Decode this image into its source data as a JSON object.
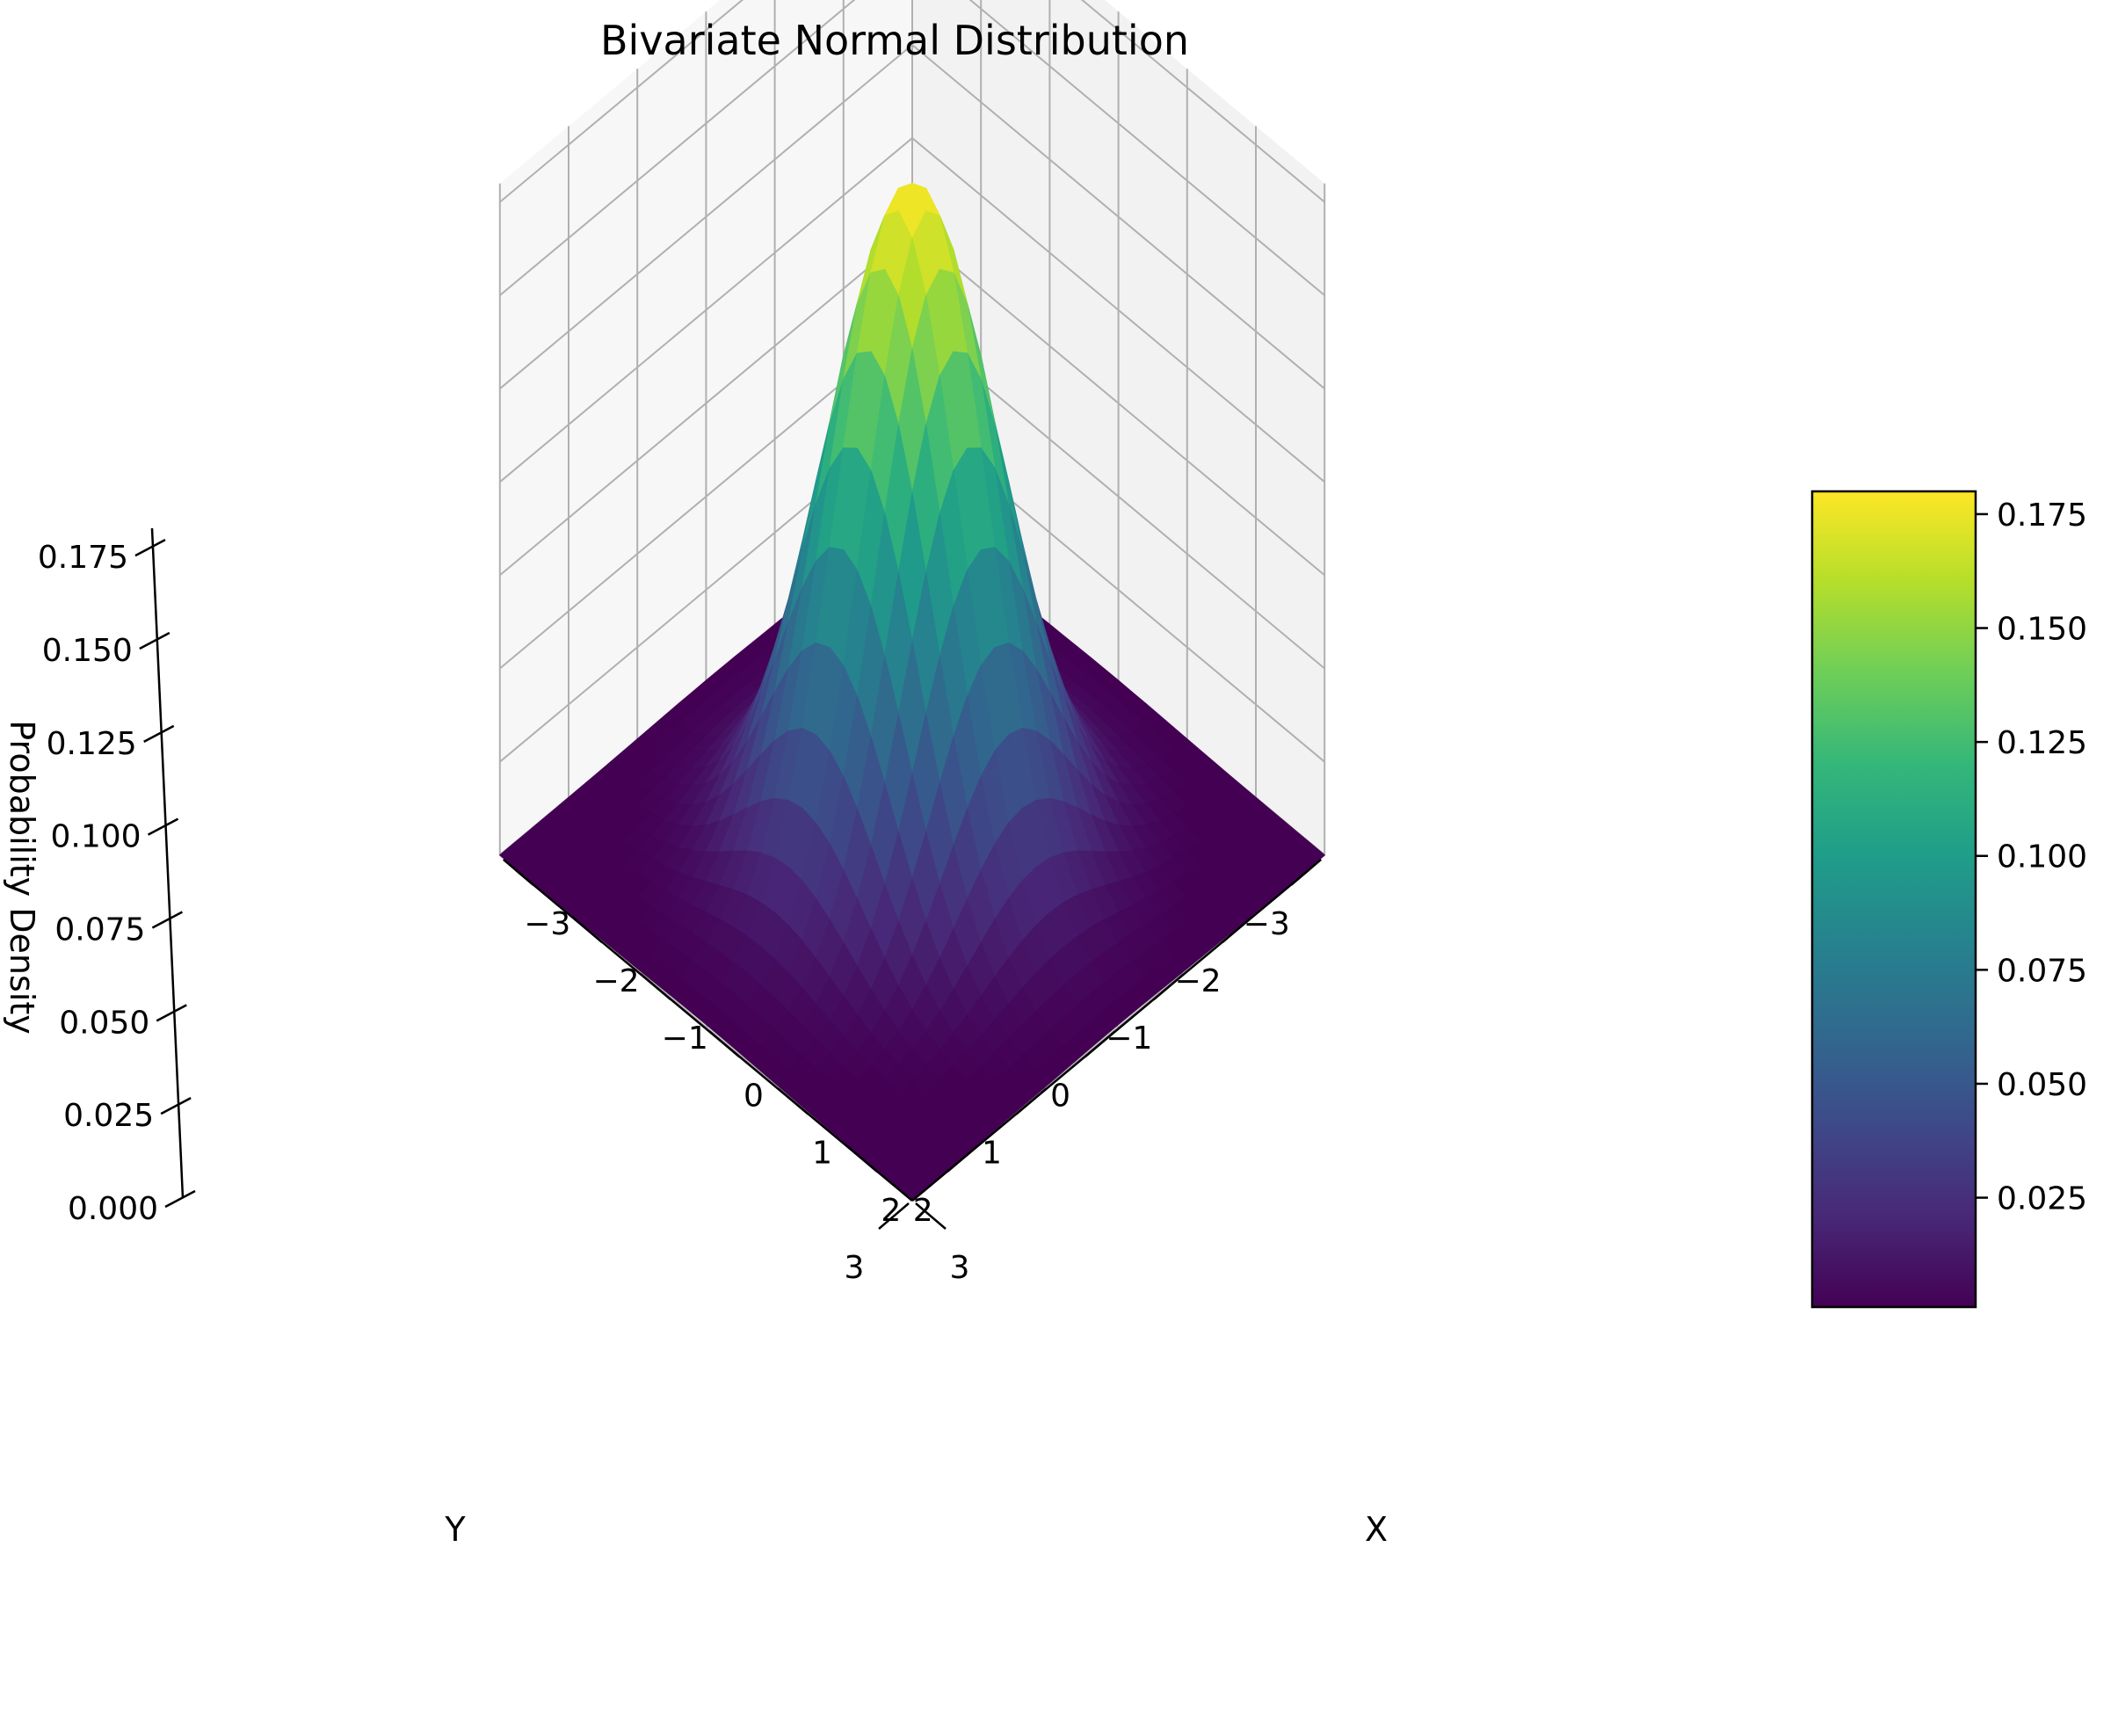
{
  "chart_data": {
    "type": "surface3d",
    "title": "Bivariate Normal Distribution",
    "xlabel": "X",
    "ylabel": "Y",
    "zlabel": "Probability Density",
    "x": {
      "min": -3,
      "max": 3,
      "ticks": [
        -3,
        -2,
        -1,
        0,
        1,
        2,
        3
      ],
      "tick_labels": [
        "−3",
        "−2",
        "−1",
        "0",
        "1",
        "2",
        "3"
      ]
    },
    "y": {
      "min": -3,
      "max": 3,
      "ticks": [
        -3,
        -2,
        -1,
        0,
        1,
        2,
        3
      ],
      "tick_labels": [
        "−3",
        "−2",
        "−1",
        "0",
        "1",
        "2",
        "3"
      ]
    },
    "z": {
      "min": 0,
      "max": 0.175,
      "ticks": [
        0,
        0.025,
        0.05,
        0.075,
        0.1,
        0.125,
        0.15,
        0.175
      ],
      "tick_labels": [
        "0.000",
        "0.025",
        "0.050",
        "0.075",
        "0.100",
        "0.125",
        "0.150",
        "0.175"
      ]
    },
    "function": {
      "kind": "bivariate-normal",
      "mean": [
        0,
        0
      ],
      "sigma_x": 0.9,
      "sigma_y": 0.9,
      "peak": 0.18
    },
    "grid_samples": 30,
    "colormap": "viridis",
    "colormap_stops": [
      "#440154",
      "#482878",
      "#3e4989",
      "#31688e",
      "#26828e",
      "#1f9e89",
      "#35b779",
      "#6ece58",
      "#b5de2b",
      "#fde725"
    ],
    "colorbar": {
      "min": 0.001,
      "max": 0.18,
      "ticks": [
        0.025,
        0.05,
        0.075,
        0.1,
        0.125,
        0.15,
        0.175
      ],
      "tick_labels": [
        "0.025",
        "0.050",
        "0.075",
        "0.100",
        "0.125",
        "0.150",
        "0.175"
      ]
    },
    "grid": true,
    "pane_colors": {
      "left": "#f2f2f2",
      "right": "#f7f7f7",
      "floor": "#fafafa"
    },
    "grid_color": "#b0b0b0"
  }
}
